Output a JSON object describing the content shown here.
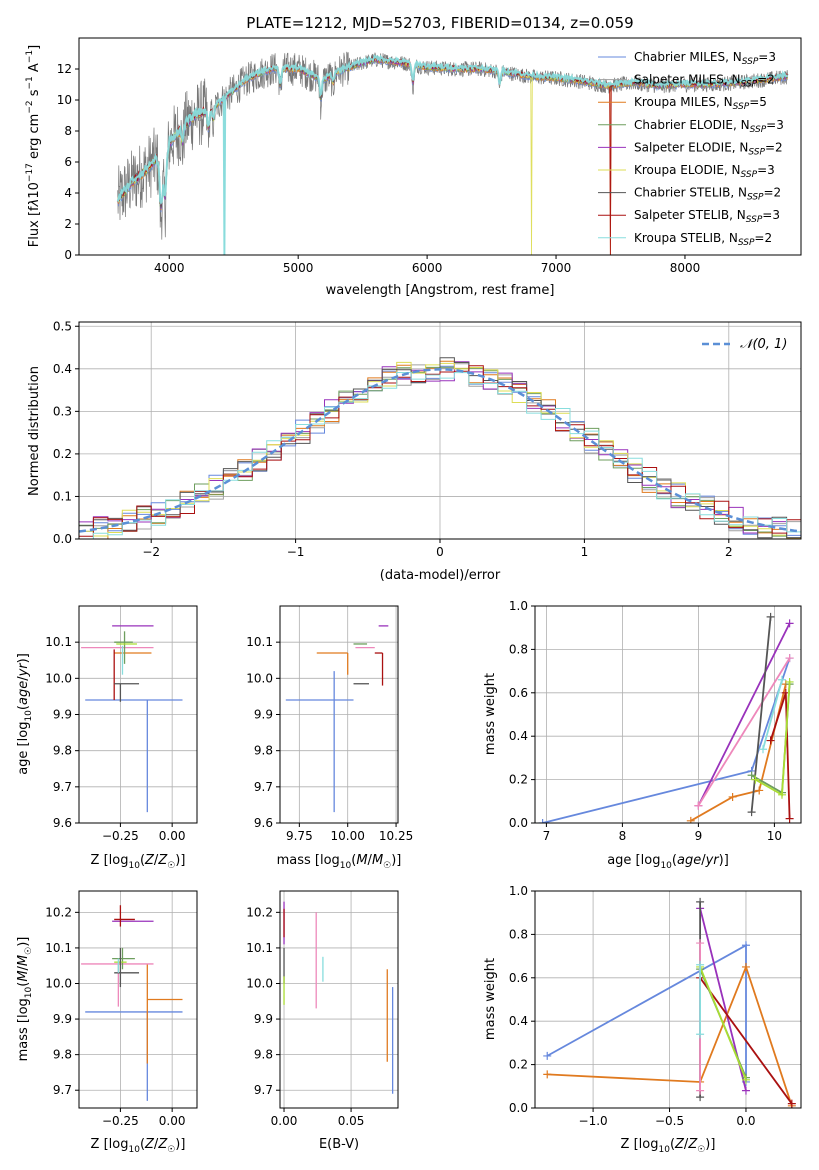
{
  "figure": {
    "title": "PLATE=1212, MJD=52703, FIBERID=0134, z=0.059"
  },
  "models": [
    {
      "name": "Chabrier MILES",
      "nssp": "3",
      "color": "#6688dd"
    },
    {
      "name": "Salpeter MILES",
      "nssp": "2",
      "color": "#a0a0a0"
    },
    {
      "name": "Kroupa MILES",
      "nssp": "5",
      "color": "#e07a1f"
    },
    {
      "name": "Chabrier ELODIE",
      "nssp": "3",
      "color": "#6e9e5e"
    },
    {
      "name": "Salpeter ELODIE",
      "nssp": "2",
      "color": "#9932bb"
    },
    {
      "name": "Kroupa ELODIE",
      "nssp": "3",
      "color": "#dddd55"
    },
    {
      "name": "Chabrier STELIB",
      "nssp": "2",
      "color": "#555555"
    },
    {
      "name": "Salpeter STELIB",
      "nssp": "3",
      "color": "#aa1111"
    },
    {
      "name": "Kroupa STELIB",
      "nssp": "2",
      "color": "#88dddd"
    }
  ],
  "extra_colors": {
    "pink": "#ee88bb",
    "lime": "#aadd33",
    "normal_curve": "#5b8fd6"
  },
  "chart_data": [
    {
      "id": "spectrum",
      "type": "line",
      "title": "PLATE=1212, MJD=52703, FIBERID=0134, z=0.059",
      "xlabel": "wavelength [Angstrom, rest frame]",
      "ylabel": "Flux [f_λ 10^-17 erg cm^-2 s^-1 A^-1]",
      "xlim": [
        3300,
        8900
      ],
      "ylim": [
        0,
        14
      ],
      "xticks": [
        "4000",
        "5000",
        "6000",
        "7000",
        "8000"
      ],
      "yticks": [
        "0",
        "2",
        "4",
        "6",
        "8",
        "10",
        "12"
      ],
      "grid": false,
      "legend": "upper right",
      "continuum": [
        [
          3600,
          3.5
        ],
        [
          3700,
          4.6
        ],
        [
          3800,
          5.3
        ],
        [
          3900,
          6.2
        ],
        [
          3950,
          4.5
        ],
        [
          4000,
          7.2
        ],
        [
          4100,
          8.2
        ],
        [
          4200,
          9.0
        ],
        [
          4300,
          9.3
        ],
        [
          4400,
          9.9
        ],
        [
          4500,
          10.6
        ],
        [
          4600,
          11.3
        ],
        [
          4700,
          11.7
        ],
        [
          4800,
          12.0
        ],
        [
          4900,
          12.0
        ],
        [
          5000,
          12.0
        ],
        [
          5100,
          11.6
        ],
        [
          5200,
          11.3
        ],
        [
          5300,
          11.8
        ],
        [
          5400,
          12.1
        ],
        [
          5500,
          12.4
        ],
        [
          5600,
          12.6
        ],
        [
          5800,
          12.4
        ],
        [
          6000,
          12.1
        ],
        [
          6200,
          12.0
        ],
        [
          6400,
          12.0
        ],
        [
          6600,
          11.8
        ],
        [
          6800,
          11.5
        ],
        [
          7000,
          11.4
        ],
        [
          7200,
          11.2
        ],
        [
          7400,
          10.9
        ],
        [
          7600,
          11.1
        ],
        [
          7800,
          10.9
        ],
        [
          8000,
          11.0
        ],
        [
          8200,
          11.0
        ],
        [
          8400,
          11.1
        ],
        [
          8600,
          11.3
        ],
        [
          8800,
          11.5
        ]
      ]
    },
    {
      "id": "residuals",
      "type": "histogram",
      "xlabel": "(data-model)/error",
      "ylabel": "Normed distribution",
      "xlim": [
        -2.5,
        2.5
      ],
      "ylim": [
        0,
        0.51
      ],
      "xticks": [
        "−2",
        "−1",
        "0",
        "1",
        "2"
      ],
      "yticks": [
        "0.0",
        "0.1",
        "0.2",
        "0.3",
        "0.4",
        "0.5"
      ],
      "grid": true,
      "legend": "upper right",
      "normal_label": "𝒩(0, 1)",
      "bin_width": 0.1
    },
    {
      "id": "age_vs_Z",
      "type": "errorbar",
      "xlabel": "Z [log10(Z/Z☉)]",
      "ylabel": "age [log10(age/yr)]",
      "xlim": [
        -0.45,
        0.12
      ],
      "ylim": [
        9.6,
        10.2
      ],
      "xticks": [
        "−0.25",
        "0.00"
      ],
      "yticks": [
        "9.6",
        "9.7",
        "9.8",
        "9.9",
        "10.0",
        "10.1"
      ],
      "grid": true,
      "points": [
        {
          "x": -0.12,
          "xerr": [
            0.3,
            0.17
          ],
          "y": 9.94,
          "yerr": [
            0.31,
            0.0
          ],
          "model": "Chabrier MILES"
        },
        {
          "x": -0.28,
          "xerr": [
            0.0,
            0.18
          ],
          "y": 10.07,
          "yerr": [
            0.0,
            0.0
          ],
          "model": "Kroupa MILES"
        },
        {
          "x": -0.19,
          "xerr": [
            0.1,
            0.1
          ],
          "y": 10.145,
          "yerr": [
            0.0,
            0.0
          ],
          "model": "Salpeter ELODIE"
        },
        {
          "x": -0.26,
          "xerr": [
            0.18,
            0.17
          ],
          "y": 10.085,
          "yerr": [
            0.0,
            0.0
          ],
          "model": "pink"
        },
        {
          "x": -0.23,
          "xerr": [
            0.05,
            0.04
          ],
          "y": 10.1,
          "yerr": [
            0.06,
            0.03
          ],
          "model": "Chabrier ELODIE"
        },
        {
          "x": -0.22,
          "xerr": [
            0.05,
            0.05
          ],
          "y": 10.095,
          "yerr": [
            0.0,
            0.0
          ],
          "model": "lime"
        },
        {
          "x": -0.28,
          "xerr": [
            0.0,
            0.0
          ],
          "y": 10.03,
          "yerr": [
            0.09,
            0.05
          ],
          "model": "Salpeter STELIB"
        },
        {
          "x": -0.25,
          "xerr": [
            0.03,
            0.09
          ],
          "y": 9.985,
          "yerr": [
            0.05,
            0.0
          ],
          "model": "Chabrier STELIB"
        },
        {
          "x": -0.24,
          "xerr": [
            0.0,
            0.0
          ],
          "y": 10.05,
          "yerr": [
            0.04,
            0.04
          ],
          "model": "Kroupa STELIB"
        }
      ]
    },
    {
      "id": "age_vs_mass",
      "type": "errorbar",
      "xlabel": "mass [log10(M/M☉)]",
      "ylabel": "",
      "xlim": [
        9.65,
        10.26
      ],
      "ylim": [
        9.6,
        10.2
      ],
      "xticks": [
        "9.75",
        "10.00",
        "10.25"
      ],
      "yticks": [
        "9.6",
        "9.7",
        "9.8",
        "9.9",
        "10.0",
        "10.1"
      ],
      "grid": true,
      "points": [
        {
          "x": 9.93,
          "xerr": [
            0.25,
            0.1
          ],
          "y": 9.94,
          "yerr": [
            0.31,
            0.08
          ],
          "model": "Chabrier MILES"
        },
        {
          "x": 10.0,
          "xerr": [
            0.16,
            0.0
          ],
          "y": 10.07,
          "yerr": [
            0.06,
            0.0
          ],
          "model": "Kroupa MILES"
        },
        {
          "x": 10.19,
          "xerr": [
            0.03,
            0.02
          ],
          "y": 10.145,
          "yerr": [
            0.0,
            0.0
          ],
          "model": "Salpeter ELODIE"
        },
        {
          "x": 10.04,
          "xerr": [
            0.0,
            0.1
          ],
          "y": 10.085,
          "yerr": [
            0.0,
            0.0
          ],
          "model": "pink"
        },
        {
          "x": 10.05,
          "xerr": [
            0.02,
            0.05
          ],
          "y": 10.095,
          "yerr": [
            0.0,
            0.0
          ],
          "model": "Chabrier ELODIE"
        },
        {
          "x": 10.18,
          "xerr": [
            0.04,
            0.0
          ],
          "y": 10.07,
          "yerr": [
            0.09,
            0.0
          ],
          "model": "Salpeter STELIB"
        },
        {
          "x": 10.05,
          "xerr": [
            0.02,
            0.06
          ],
          "y": 9.985,
          "yerr": [
            0.0,
            0.0
          ],
          "model": "Chabrier STELIB"
        }
      ]
    },
    {
      "id": "weight_vs_age",
      "type": "line",
      "xlabel": "age [log10(age/yr)]",
      "ylabel": "mass weight",
      "xlim": [
        6.85,
        10.35
      ],
      "ylim": [
        0,
        1.0
      ],
      "xticks": [
        "7",
        "8",
        "9",
        "10"
      ],
      "yticks": [
        "0.0",
        "0.2",
        "0.4",
        "0.6",
        "0.8",
        "1.0"
      ],
      "grid": true,
      "series": [
        {
          "model": "Chabrier MILES",
          "x": [
            6.95,
            9.7,
            10.2
          ],
          "y": [
            0.0,
            0.24,
            0.76
          ]
        },
        {
          "model": "Kroupa MILES",
          "x": [
            8.9,
            9.45,
            9.8,
            10.15
          ],
          "y": [
            0.01,
            0.12,
            0.15,
            0.64
          ]
        },
        {
          "model": "Salpeter ELODIE",
          "x": [
            9.0,
            10.2
          ],
          "y": [
            0.08,
            0.92
          ]
        },
        {
          "model": "pink",
          "x": [
            9.0,
            10.2
          ],
          "y": [
            0.08,
            0.76
          ]
        },
        {
          "model": "Chabrier STELIB",
          "x": [
            9.7,
            9.95
          ],
          "y": [
            0.05,
            0.95
          ]
        },
        {
          "model": "Salpeter STELIB",
          "x": [
            9.95,
            10.15,
            10.2
          ],
          "y": [
            0.38,
            0.6,
            0.02
          ]
        },
        {
          "model": "Chabrier ELODIE",
          "x": [
            9.7,
            10.1,
            10.2
          ],
          "y": [
            0.22,
            0.14,
            0.64
          ]
        },
        {
          "model": "lime",
          "x": [
            9.75,
            10.1,
            10.2
          ],
          "y": [
            0.2,
            0.13,
            0.65
          ]
        },
        {
          "model": "Kroupa STELIB",
          "x": [
            9.85,
            10.1
          ],
          "y": [
            0.34,
            0.66
          ]
        }
      ]
    },
    {
      "id": "mass_vs_Z",
      "type": "errorbar",
      "xlabel": "Z [log10(Z/Z☉)]",
      "ylabel": "mass [log10(M/M☉)]",
      "xlim": [
        -0.45,
        0.12
      ],
      "ylim": [
        9.65,
        10.26
      ],
      "xticks": [
        "−0.25",
        "0.00"
      ],
      "yticks": [
        "9.7",
        "9.8",
        "9.9",
        "10.0",
        "10.1",
        "10.2"
      ],
      "grid": true,
      "points": [
        {
          "x": -0.12,
          "xerr": [
            0.3,
            0.17
          ],
          "y": 9.92,
          "yerr": [
            0.25,
            0.0
          ],
          "model": "Chabrier MILES"
        },
        {
          "x": -0.12,
          "xerr": [
            0.0,
            0.17
          ],
          "y": 9.955,
          "yerr": [
            0.18,
            0.1
          ],
          "model": "Kroupa MILES"
        },
        {
          "x": -0.19,
          "xerr": [
            0.1,
            0.1
          ],
          "y": 10.175,
          "yerr": [
            0.0,
            0.0
          ],
          "model": "Salpeter ELODIE"
        },
        {
          "x": -0.26,
          "xerr": [
            0.18,
            0.17
          ],
          "y": 10.055,
          "yerr": [
            0.12,
            0.0
          ],
          "model": "pink"
        },
        {
          "x": -0.24,
          "xerr": [
            0.05,
            0.06
          ],
          "y": 10.07,
          "yerr": [
            0.03,
            0.03
          ],
          "model": "Chabrier ELODIE"
        },
        {
          "x": -0.25,
          "xerr": [
            0.03,
            0.03
          ],
          "y": 10.06,
          "yerr": [
            0.0,
            0.0
          ],
          "model": "lime"
        },
        {
          "x": -0.25,
          "xerr": [
            0.03,
            0.07
          ],
          "y": 10.18,
          "yerr": [
            0.02,
            0.04
          ],
          "model": "Salpeter STELIB"
        },
        {
          "x": -0.25,
          "xerr": [
            0.03,
            0.09
          ],
          "y": 10.03,
          "yerr": [
            0.04,
            0.07
          ],
          "model": "Chabrier STELIB"
        },
        {
          "x": -0.26,
          "xerr": [
            0.0,
            0.0
          ],
          "y": 10.05,
          "yerr": [
            0.02,
            0.02
          ],
          "model": "Kroupa STELIB"
        }
      ]
    },
    {
      "id": "mass_vs_ebv",
      "type": "errorbar",
      "xlabel": "E(B-V)",
      "ylabel": "",
      "xlim": [
        -0.003,
        0.085
      ],
      "ylim": [
        9.65,
        10.26
      ],
      "xticks": [
        "0.00",
        "0.05"
      ],
      "yticks": [
        "9.7",
        "9.8",
        "9.9",
        "10.0",
        "10.1",
        "10.2"
      ],
      "grid": true,
      "points": [
        {
          "x": 0.081,
          "xerr": [
            0.0,
            0.0
          ],
          "y": 9.84,
          "yerr": [
            0.15,
            0.15
          ],
          "model": "Chabrier MILES"
        },
        {
          "x": 0.077,
          "xerr": [
            0.0,
            0.0
          ],
          "y": 9.91,
          "yerr": [
            0.13,
            0.13
          ],
          "model": "Kroupa MILES"
        },
        {
          "x": 0.024,
          "xerr": [
            0.0,
            0.0
          ],
          "y": 10.065,
          "yerr": [
            0.135,
            0.135
          ],
          "model": "pink"
        },
        {
          "x": 0.029,
          "xerr": [
            0.0,
            0.0
          ],
          "y": 10.04,
          "yerr": [
            0.035,
            0.035
          ],
          "model": "Kroupa STELIB"
        },
        {
          "x": 0.0,
          "xerr": [
            0.0,
            0.0
          ],
          "y": 10.17,
          "yerr": [
            0.06,
            0.06
          ],
          "model": "Salpeter ELODIE"
        },
        {
          "x": 0.0,
          "xerr": [
            0.0,
            0.0
          ],
          "y": 10.17,
          "yerr": [
            0.04,
            0.04
          ],
          "model": "Salpeter STELIB"
        },
        {
          "x": 0.0,
          "xerr": [
            0.0,
            0.0
          ],
          "y": 10.05,
          "yerr": [
            0.05,
            0.05
          ],
          "model": "Chabrier STELIB"
        },
        {
          "x": 0.0,
          "xerr": [
            0.0,
            0.0
          ],
          "y": 9.98,
          "yerr": [
            0.04,
            0.04
          ],
          "model": "lime"
        }
      ]
    },
    {
      "id": "weight_vs_Z",
      "type": "line",
      "xlabel": "Z [log10(Z/Z☉)]",
      "ylabel": "mass weight",
      "xlim": [
        -1.38,
        0.36
      ],
      "ylim": [
        0,
        1.0
      ],
      "xticks": [
        "−1.0",
        "−0.5",
        "0.0"
      ],
      "yticks": [
        "0.0",
        "0.2",
        "0.4",
        "0.6",
        "0.8",
        "1.0"
      ],
      "grid": true,
      "series": [
        {
          "model": "Chabrier MILES",
          "x": [
            -1.3,
            0.0,
            0.0
          ],
          "y": [
            0.24,
            0.75,
            0.12
          ]
        },
        {
          "model": "Kroupa MILES",
          "x": [
            -1.3,
            -0.3,
            0.0,
            0.3
          ],
          "y": [
            0.155,
            0.12,
            0.65,
            0.01
          ]
        },
        {
          "model": "Salpeter ELODIE",
          "x": [
            -0.3,
            0.0
          ],
          "y": [
            0.92,
            0.08
          ]
        },
        {
          "model": "Chabrier STELIB",
          "x": [
            -0.3,
            -0.3
          ],
          "y": [
            0.05,
            0.95
          ]
        },
        {
          "model": "Salpeter STELIB",
          "x": [
            -0.3,
            0.3
          ],
          "y": [
            0.6,
            0.02
          ]
        },
        {
          "model": "Chabrier ELODIE",
          "x": [
            -0.3,
            0.0
          ],
          "y": [
            0.64,
            0.14
          ]
        },
        {
          "model": "lime",
          "x": [
            -0.3,
            0.0
          ],
          "y": [
            0.65,
            0.13
          ]
        },
        {
          "model": "pink",
          "x": [
            -0.3,
            -0.3
          ],
          "y": [
            0.08,
            0.76
          ]
        },
        {
          "model": "Kroupa STELIB",
          "x": [
            -0.3,
            -0.3
          ],
          "y": [
            0.34,
            0.66
          ]
        }
      ]
    }
  ]
}
